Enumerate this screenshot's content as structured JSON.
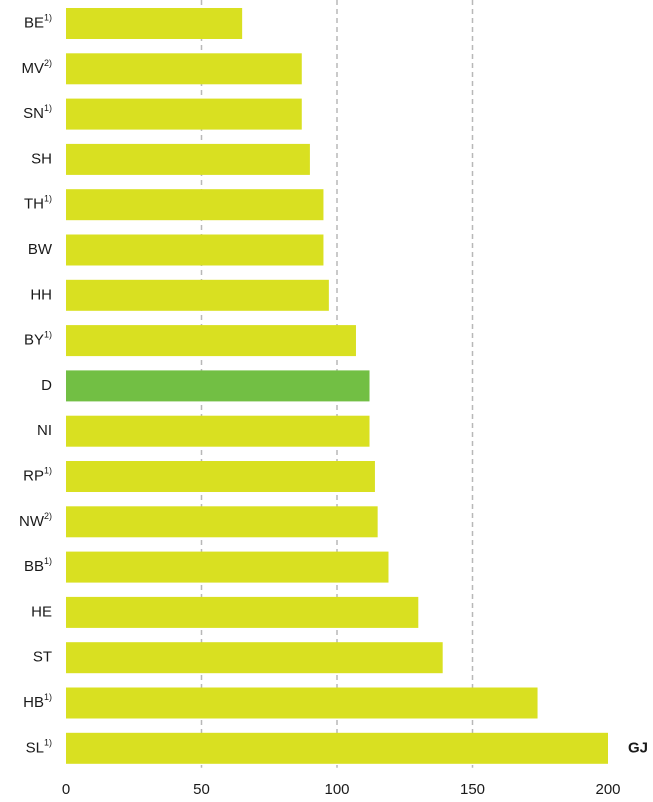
{
  "chart_data": {
    "type": "barh",
    "categories": [
      "BE",
      "MV",
      "SN",
      "SH",
      "TH",
      "BW",
      "HH",
      "BY",
      "D",
      "NI",
      "RP",
      "NW",
      "BB",
      "HE",
      "ST",
      "HB",
      "SL"
    ],
    "category_notes": [
      "1)",
      "2)",
      "1)",
      null,
      "1)",
      null,
      null,
      "1)",
      null,
      null,
      "1)",
      "2)",
      "1)",
      null,
      null,
      "1)",
      "1)"
    ],
    "values": [
      65,
      87,
      87,
      90,
      95,
      95,
      97,
      107,
      112,
      112,
      114,
      115,
      119,
      130,
      139,
      174,
      200
    ],
    "colors": [
      "#d9e021",
      "#d9e021",
      "#d9e021",
      "#d9e021",
      "#d9e021",
      "#d9e021",
      "#d9e021",
      "#d9e021",
      "#72bf44",
      "#d9e021",
      "#d9e021",
      "#d9e021",
      "#d9e021",
      "#d9e021",
      "#d9e021",
      "#d9e021",
      "#d9e021"
    ],
    "unit_label": "GJ",
    "xlim": [
      0,
      200
    ],
    "xticks": [
      0,
      50,
      100,
      150,
      200
    ],
    "grid": true
  }
}
